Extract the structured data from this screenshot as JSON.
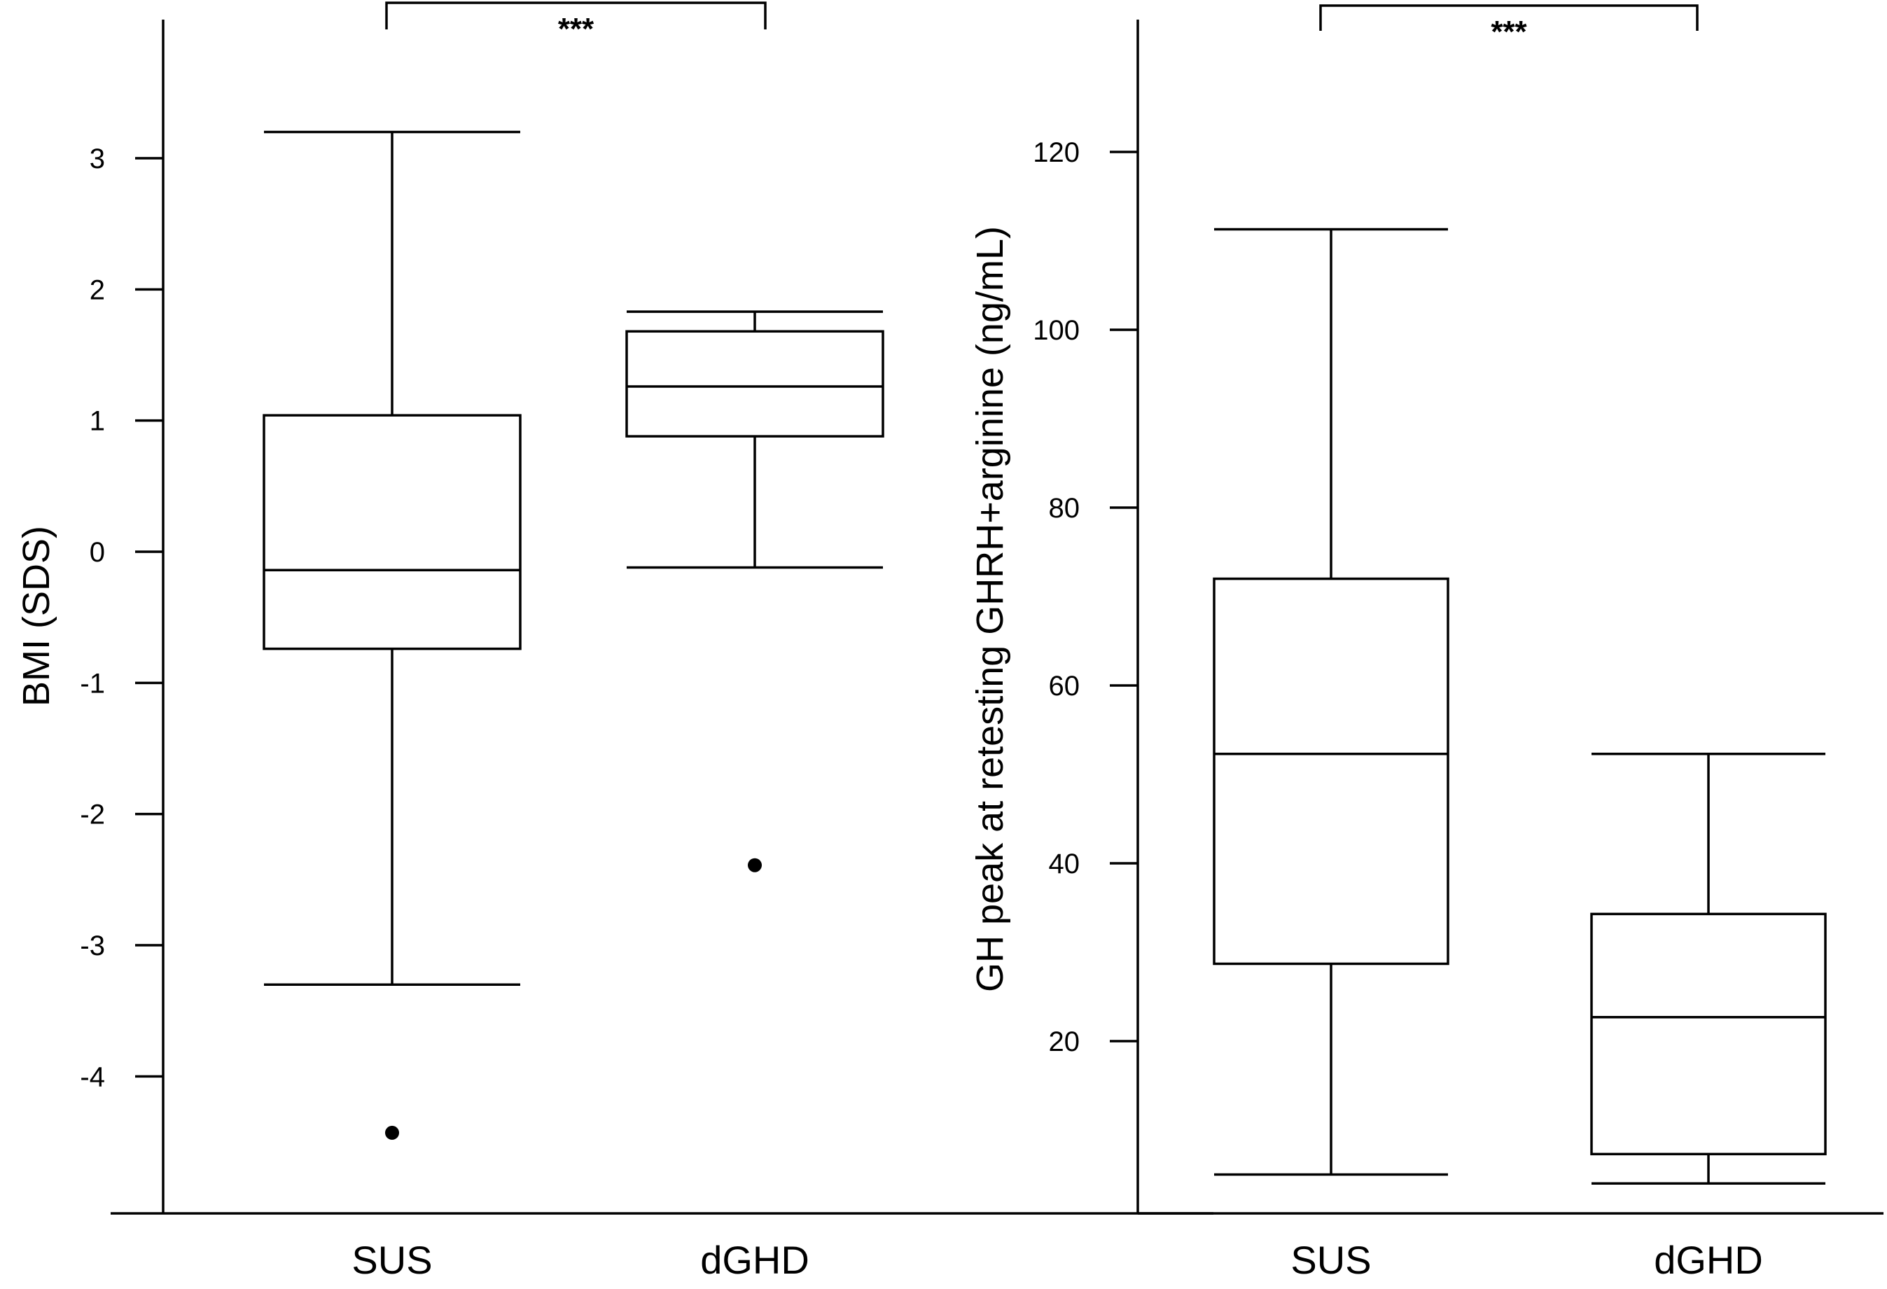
{
  "chart_data": [
    {
      "type": "box",
      "ylabel": "BMI (SDS)",
      "ylim": [
        -5.0,
        4.0
      ],
      "yticks": [
        -4,
        -3,
        -2,
        -1,
        0,
        1,
        2,
        3
      ],
      "ytick_labels": [
        "-4",
        "-3",
        "-2",
        "-1",
        "0",
        "1",
        "2",
        "3"
      ],
      "categories": [
        "SUS",
        "dGHD"
      ],
      "boxes": [
        {
          "category": "SUS",
          "whisker_low": -3.3,
          "q1": -0.74,
          "median": -0.14,
          "q3": 1.04,
          "whisker_high": 3.2,
          "outliers": [
            -4.43
          ]
        },
        {
          "category": "dGHD",
          "whisker_low": -0.12,
          "q1": 0.88,
          "median": 1.26,
          "q3": 1.68,
          "whisker_high": 1.83,
          "outliers": [
            -2.39
          ]
        }
      ],
      "significance": {
        "label": "***",
        "pair": [
          "SUS",
          "dGHD"
        ]
      },
      "grid": false
    },
    {
      "type": "box",
      "ylabel": "GH peak at retesting GHRH+arginine (ng/mL)",
      "ylim": [
        0,
        133
      ],
      "yticks": [
        20,
        40,
        60,
        80,
        100,
        120
      ],
      "ytick_labels": [
        "20",
        "40",
        "60",
        "80",
        "100",
        "120"
      ],
      "categories": [
        "SUS",
        "dGHD"
      ],
      "boxes": [
        {
          "category": "SUS",
          "whisker_low": 5,
          "q1": 28.7,
          "median": 52.3,
          "q3": 72,
          "whisker_high": 111.3,
          "outliers": []
        },
        {
          "category": "dGHD",
          "whisker_low": 4,
          "q1": 7.3,
          "median": 22.7,
          "q3": 34.3,
          "whisker_high": 52.3,
          "outliers": []
        }
      ],
      "significance": {
        "label": "***",
        "pair": [
          "SUS",
          "dGHD"
        ]
      },
      "grid": false
    }
  ]
}
